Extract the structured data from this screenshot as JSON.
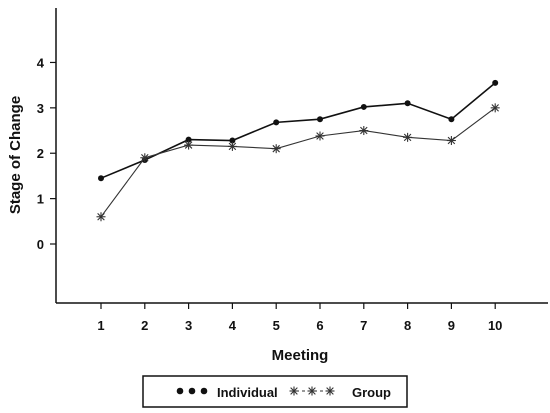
{
  "chart_data": {
    "type": "line",
    "title": "",
    "xlabel": "Meeting",
    "ylabel": "Stage of Change",
    "categories": [
      "1",
      "2",
      "3",
      "4",
      "5",
      "6",
      "7",
      "8",
      "9",
      "10"
    ],
    "yticks": [
      "0",
      "1",
      "2",
      "3",
      "4"
    ],
    "ylim": [
      -1.3,
      5.2
    ],
    "grid": false,
    "legend_position": "bottom",
    "series": [
      {
        "name": "Individual",
        "marker": "dot",
        "color": "#111111",
        "values": [
          1.45,
          1.85,
          2.3,
          2.28,
          2.68,
          2.75,
          3.02,
          3.1,
          2.75,
          3.55
        ]
      },
      {
        "name": "Group",
        "marker": "star",
        "color": "#333333",
        "values": [
          0.6,
          1.9,
          2.18,
          2.15,
          2.1,
          2.38,
          2.5,
          2.35,
          2.28,
          3.0
        ]
      }
    ],
    "legend": {
      "individual_label": "Individual",
      "group_label": "Group"
    }
  }
}
